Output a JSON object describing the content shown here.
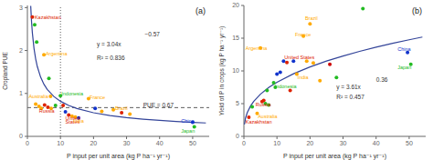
{
  "chart_data": [
    {
      "type": "scatter",
      "title": "(a)",
      "x_label": "P input per unit area (kg P ha⁻¹ yr⁻¹)",
      "y_label": "Cropland PUE",
      "xlim": [
        0,
        55
      ],
      "ylim": [
        0,
        3.05
      ],
      "xticks": [
        0,
        10,
        20,
        30,
        40,
        50
      ],
      "yticks": [
        0,
        1,
        2,
        3
      ],
      "grid": false,
      "series": [
        {
          "type": "scatter",
          "marker": "circle",
          "x": [
            1.5,
            2.2,
            2.8,
            5.0,
            6.5,
            7.0,
            2.5,
            3.5,
            4.2,
            5.2,
            6.2,
            7.2,
            8.5,
            10.0,
            10.8,
            11.5,
            12.5,
            13.5,
            14.5,
            15.5,
            18.5,
            20.5,
            22.5,
            26.0,
            28.5,
            31.0,
            50.0,
            50.5
          ],
          "values": [
            2.78,
            2.6,
            2.2,
            1.9,
            1.35,
            0.93,
            0.75,
            0.7,
            0.65,
            0.73,
            0.68,
            0.65,
            0.72,
            0.95,
            0.72,
            0.57,
            0.5,
            0.47,
            0.45,
            0.43,
            0.88,
            0.65,
            0.58,
            0.62,
            0.55,
            0.52,
            0.33,
            0.22
          ],
          "colors": [
            "#dd2200",
            "#22bb22",
            "#22bb22",
            "#ffaa00",
            "#22bb22",
            "#ffaa00",
            "#ffaa00",
            "#ffaa00",
            "#ffaa00",
            "#dd2200",
            "#dd2200",
            "#ffaa00",
            "#22bb22",
            "#22bb22",
            "#dd2200",
            "#1133cc",
            "#dd2200",
            "#ffaa00",
            "#ffaa00",
            "#1133cc",
            "#ffaa00",
            "#1133cc",
            "#ffaa00",
            "#ffaa00",
            "#dd2200",
            "#ffaa00",
            "#1133cc",
            "#22bb22"
          ]
        },
        {
          "type": "line",
          "color": "#334499",
          "line_style": "solid",
          "x": [
            1,
            1.25,
            1.5,
            2,
            2.5,
            3,
            4,
            5,
            6,
            8,
            10,
            12.5,
            15,
            20,
            25,
            30,
            35,
            40,
            45,
            50,
            54
          ],
          "values": [
            3.04,
            2.6769,
            2.4127,
            2.0477,
            1.8032,
            1.6253,
            1.3794,
            1.2147,
            1.0948,
            0.9292,
            0.8182,
            0.7205,
            0.6494,
            0.5512,
            0.4853,
            0.4374,
            0.4006,
            0.3713,
            0.3472,
            0.3269,
            0.3129
          ]
        }
      ],
      "reference_lines": [
        {
          "axis": "y",
          "value": 0.67,
          "color": "#333333",
          "line_style": "dashed"
        },
        {
          "axis": "x",
          "value": 10,
          "color": "#333333",
          "line_style": "dotted"
        }
      ],
      "annotations": [
        {
          "text": "y = 3.04x",
          "x": 21,
          "y": 2.15,
          "color": "#333333"
        },
        {
          "text": "−0.57",
          "x": 35.5,
          "y": 2.37,
          "color": "#333333"
        },
        {
          "text": "R² = 0.836",
          "x": 21,
          "y": 1.82,
          "color": "#333333"
        },
        {
          "text": "PUE = 0.67",
          "x": 35,
          "y": 0.72,
          "color": "#333333"
        }
      ],
      "labels": [
        {
          "x": 2.2,
          "y": 2.78,
          "text": "Kazakhstan",
          "color": "#dd2200"
        },
        {
          "x": 5.5,
          "y": 1.93,
          "text": "Argentina",
          "color": "#ffaa00"
        },
        {
          "x": 0.4,
          "y": 0.93,
          "text": "Australia",
          "color": "#ffaa00"
        },
        {
          "x": 3.5,
          "y": 0.6,
          "text": "Russia",
          "color": "#dd2200"
        },
        {
          "x": 10.3,
          "y": 1.0,
          "text": "Indonesia",
          "color": "#22bb22"
        },
        {
          "x": 18.8,
          "y": 0.92,
          "text": "France",
          "color": "#ffaa00"
        },
        {
          "x": 11.5,
          "y": 0.42,
          "text": "United",
          "color": "#dd2200"
        },
        {
          "x": 11.5,
          "y": 0.34,
          "text": "States",
          "color": "#dd2200"
        },
        {
          "x": 13.8,
          "y": 0.36,
          "text": "India",
          "color": "#ffaa00"
        },
        {
          "x": 26.5,
          "y": 0.65,
          "text": "Brazil",
          "color": "#ffaa00"
        },
        {
          "x": 46.5,
          "y": 0.36,
          "text": "China",
          "color": "#1133cc"
        },
        {
          "x": 46.5,
          "y": 0.13,
          "text": "Japan",
          "color": "#22bb22"
        }
      ]
    },
    {
      "type": "scatter",
      "title": "(b)",
      "x_label": "P input per unit area (kg P ha⁻¹ yr⁻¹)",
      "y_label": "Yield of P in crops (kg P ha⁻¹ yr⁻¹)",
      "xlim": [
        0,
        55
      ],
      "ylim": [
        0,
        20
      ],
      "xticks": [
        0,
        10,
        20,
        30,
        40,
        50
      ],
      "yticks": [
        0,
        5,
        10,
        15,
        20
      ],
      "grid": false,
      "series": [
        {
          "type": "scatter",
          "marker": "circle",
          "x": [
            1.5,
            2.5,
            4.0,
            5.0,
            5.5,
            6.0,
            6.5,
            7.0,
            7.5,
            9.0,
            9.5,
            10.0,
            11.0,
            12.0,
            13.0,
            14.0,
            15.0,
            16.0,
            18.0,
            19.0,
            20.0,
            21.0,
            23.0,
            26.0,
            28.0,
            36.0,
            49.5,
            50.5
          ],
          "values": [
            2.9,
            4.5,
            3.5,
            13.5,
            5.3,
            5.5,
            5.0,
            7.0,
            4.8,
            8.2,
            7.5,
            9.5,
            9.8,
            11.5,
            11.3,
            7.0,
            11.5,
            9.5,
            15.3,
            11.5,
            17.2,
            11.2,
            8.5,
            11.0,
            9.0,
            19.5,
            12.8,
            11.0
          ],
          "colors": [
            "#dd2200",
            "#22bb22",
            "#ffaa00",
            "#ffaa00",
            "#dd2200",
            "#dd2200",
            "#22bb22",
            "#22bb22",
            "#22bb22",
            "#22bb22",
            "#22bb22",
            "#1133cc",
            "#1133cc",
            "#1133cc",
            "#dd2200",
            "#dd2200",
            "#1133cc",
            "#ffaa00",
            "#ffaa00",
            "#ffaa00",
            "#ffaa00",
            "#ffaa00",
            "#ffaa00",
            "#cc0000",
            "#22bb22",
            "#22bb22",
            "#1133cc",
            "#22bb22"
          ]
        },
        {
          "type": "line",
          "color": "#334499",
          "line_style": "solid",
          "x": [
            0.15,
            0.5,
            1,
            2,
            3,
            5,
            7.5,
            10,
            15,
            20,
            25,
            30,
            35,
            40,
            45,
            50,
            54
          ],
          "values": [
            1.8236,
            2.8129,
            3.61,
            4.6332,
            5.3613,
            6.4437,
            7.4564,
            8.27,
            9.5697,
            10.614,
            11.5018,
            12.2821,
            12.9829,
            13.6222,
            14.2123,
            14.7617,
            15.1764
          ]
        }
      ],
      "reference_lines": [],
      "annotations": [
        {
          "text": "y = 3.61x",
          "x": 28,
          "y": 7.5,
          "color": "#333333"
        },
        {
          "text": "0.36",
          "x": 40,
          "y": 8.7,
          "color": "#333333"
        },
        {
          "text": "R² = 0.457",
          "x": 28,
          "y": 6.0,
          "color": "#333333"
        }
      ],
      "labels": [
        {
          "x": 0.5,
          "y": 2.2,
          "text": "Kazakhstan",
          "color": "#dd2200"
        },
        {
          "x": 4.2,
          "y": 3.0,
          "text": "Australia",
          "color": "#ffaa00"
        },
        {
          "x": 0.5,
          "y": 13.5,
          "text": "Argentina",
          "color": "#ffaa00"
        },
        {
          "x": 3.5,
          "y": 4.8,
          "text": "Russia",
          "color": "#dd2200"
        },
        {
          "x": 9.3,
          "y": 7.7,
          "text": "Indonesia",
          "color": "#22bb22"
        },
        {
          "x": 12.2,
          "y": 12.1,
          "text": "United States",
          "color": "#dd2200"
        },
        {
          "x": 16.2,
          "y": 9.0,
          "text": "India",
          "color": "#ffaa00"
        },
        {
          "x": 15.5,
          "y": 15.6,
          "text": "France",
          "color": "#ffaa00"
        },
        {
          "x": 18.5,
          "y": 18.0,
          "text": "Brazil",
          "color": "#ffaa00"
        },
        {
          "x": 46.5,
          "y": 13.3,
          "text": "China",
          "color": "#1133cc"
        },
        {
          "x": 46.5,
          "y": 10.5,
          "text": "Japan",
          "color": "#22bb22"
        }
      ]
    }
  ]
}
